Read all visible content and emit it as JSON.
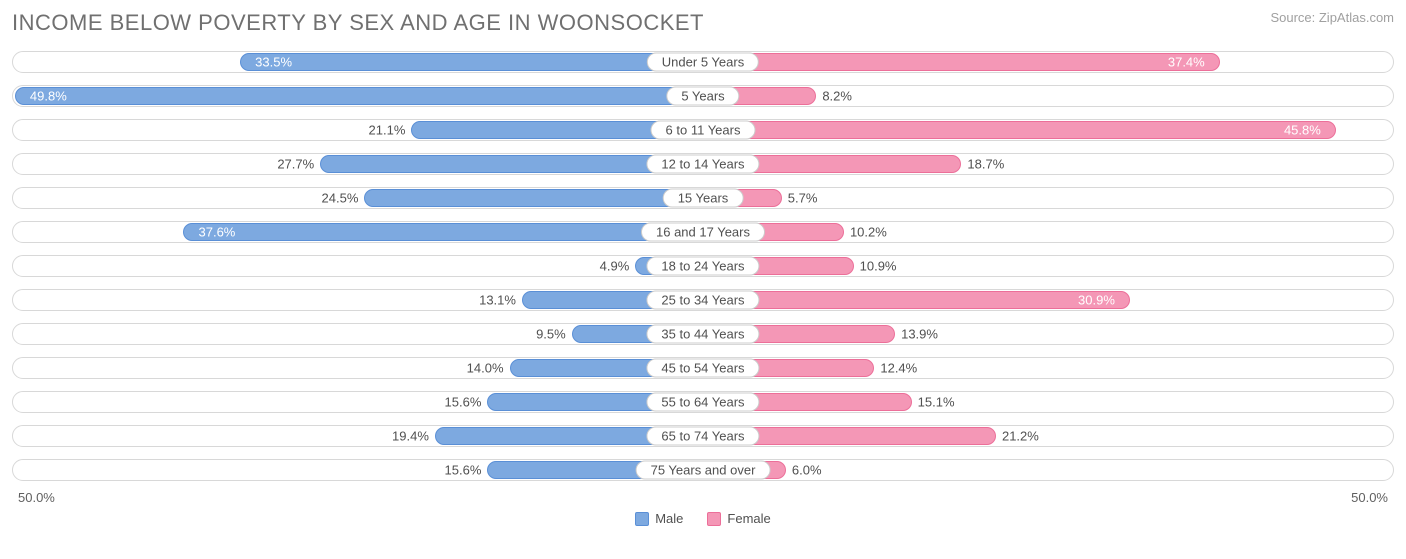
{
  "title": "INCOME BELOW POVERTY BY SEX AND AGE IN WOONSOCKET",
  "source": "Source: ZipAtlas.com",
  "chart": {
    "type": "diverging-bar",
    "max_percent": 50.0,
    "axis_left_label": "50.0%",
    "axis_right_label": "50.0%",
    "male_color_fill": "#7da9e0",
    "male_color_border": "#5a8fd6",
    "female_color_fill": "#f497b6",
    "female_color_border": "#ec6f99",
    "track_border": "#d8d8d8",
    "background_color": "#ffffff",
    "label_fontsize": 13,
    "title_fontsize": 22,
    "title_color": "#707070",
    "inside_threshold": 28.0,
    "rows": [
      {
        "age": "Under 5 Years",
        "male": 33.5,
        "female": 37.4,
        "male_label": "33.5%",
        "female_label": "37.4%"
      },
      {
        "age": "5 Years",
        "male": 49.8,
        "female": 8.2,
        "male_label": "49.8%",
        "female_label": "8.2%"
      },
      {
        "age": "6 to 11 Years",
        "male": 21.1,
        "female": 45.8,
        "male_label": "21.1%",
        "female_label": "45.8%"
      },
      {
        "age": "12 to 14 Years",
        "male": 27.7,
        "female": 18.7,
        "male_label": "27.7%",
        "female_label": "18.7%"
      },
      {
        "age": "15 Years",
        "male": 24.5,
        "female": 5.7,
        "male_label": "24.5%",
        "female_label": "5.7%"
      },
      {
        "age": "16 and 17 Years",
        "male": 37.6,
        "female": 10.2,
        "male_label": "37.6%",
        "female_label": "10.2%"
      },
      {
        "age": "18 to 24 Years",
        "male": 4.9,
        "female": 10.9,
        "male_label": "4.9%",
        "female_label": "10.9%"
      },
      {
        "age": "25 to 34 Years",
        "male": 13.1,
        "female": 30.9,
        "male_label": "13.1%",
        "female_label": "30.9%"
      },
      {
        "age": "35 to 44 Years",
        "male": 9.5,
        "female": 13.9,
        "male_label": "9.5%",
        "female_label": "13.9%"
      },
      {
        "age": "45 to 54 Years",
        "male": 14.0,
        "female": 12.4,
        "male_label": "14.0%",
        "female_label": "12.4%"
      },
      {
        "age": "55 to 64 Years",
        "male": 15.6,
        "female": 15.1,
        "male_label": "15.6%",
        "female_label": "15.1%"
      },
      {
        "age": "65 to 74 Years",
        "male": 19.4,
        "female": 21.2,
        "male_label": "19.4%",
        "female_label": "21.2%"
      },
      {
        "age": "75 Years and over",
        "male": 15.6,
        "female": 6.0,
        "male_label": "15.6%",
        "female_label": "6.0%"
      }
    ]
  },
  "legend": {
    "male": "Male",
    "female": "Female"
  }
}
